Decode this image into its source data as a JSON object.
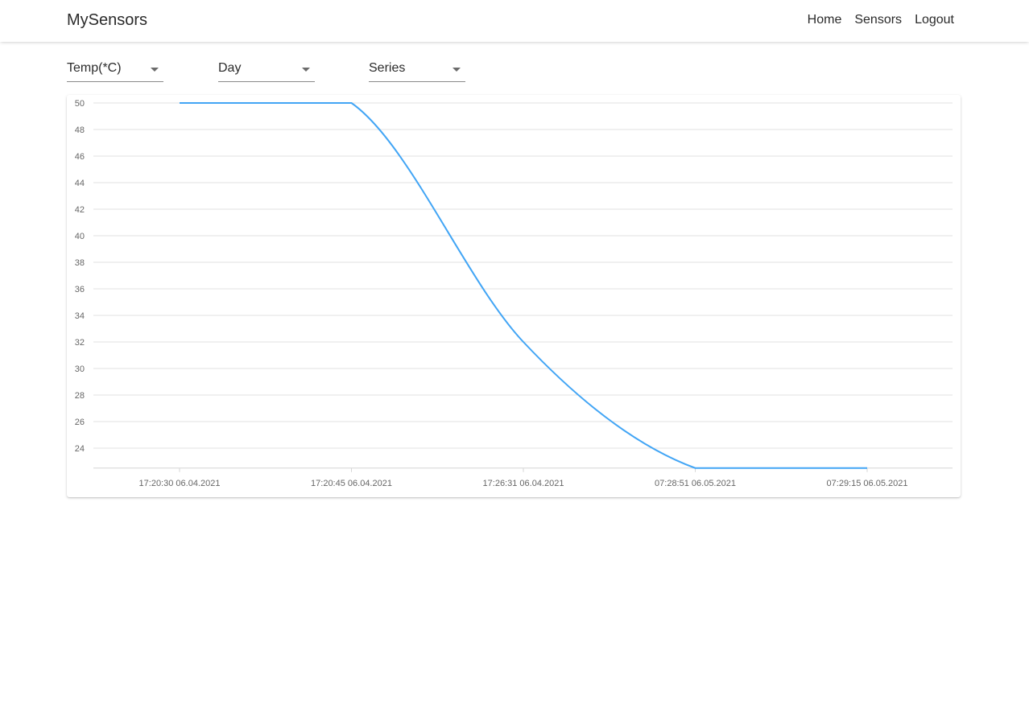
{
  "app": {
    "brand": "MySensors"
  },
  "nav": {
    "items": [
      "Home",
      "Sensors",
      "Logout"
    ]
  },
  "filters": {
    "measure": "Temp(*C)",
    "period": "Day",
    "mode": "Series"
  },
  "colors": {
    "line": "#42a5f5",
    "grid": "#e0e0e0",
    "tick_text": "#666666"
  },
  "chart_data": {
    "type": "line",
    "categories": [
      "17:20:30 06.04.2021",
      "17:20:45 06.04.2021",
      "17:26:31 06.04.2021",
      "07:28:51 06.05.2021",
      "07:29:15 06.05.2021"
    ],
    "values": [
      50,
      50,
      32,
      22.5,
      22.5
    ],
    "ylim": [
      22.5,
      50
    ],
    "y_ticks": [
      50,
      48,
      46,
      44,
      42,
      40,
      38,
      36,
      34,
      32,
      30,
      28,
      26,
      24
    ],
    "grid": true
  }
}
